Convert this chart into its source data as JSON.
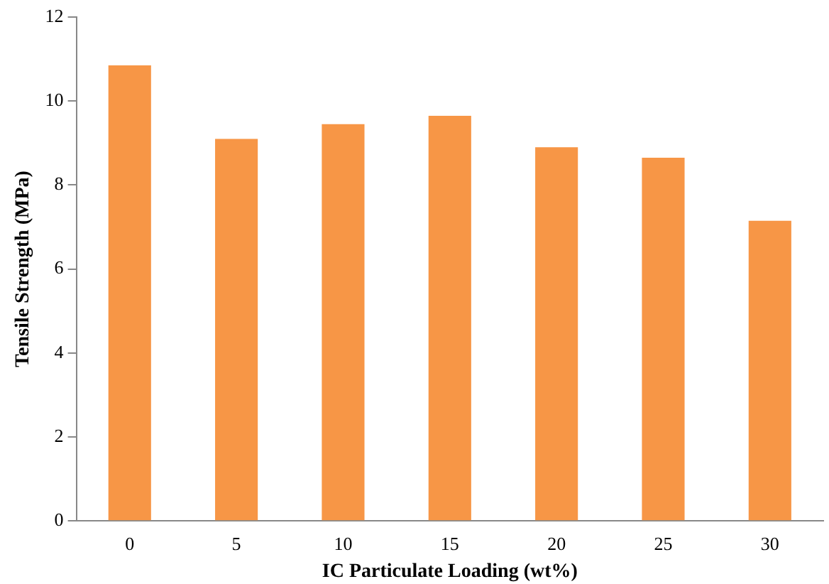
{
  "chart_data": {
    "type": "bar",
    "xlabel": "IC Particulate Loading (wt%)",
    "ylabel": "Tensile Strength (MPa)",
    "categories": [
      "0",
      "5",
      "10",
      "15",
      "20",
      "25",
      "30"
    ],
    "values": [
      10.85,
      9.1,
      9.45,
      9.65,
      8.9,
      8.65,
      7.15
    ],
    "color": "#f79646",
    "ylim": [
      0,
      12
    ],
    "yticks": [
      0,
      2,
      4,
      6,
      8,
      10,
      12
    ],
    "grid": false,
    "legend": false
  }
}
